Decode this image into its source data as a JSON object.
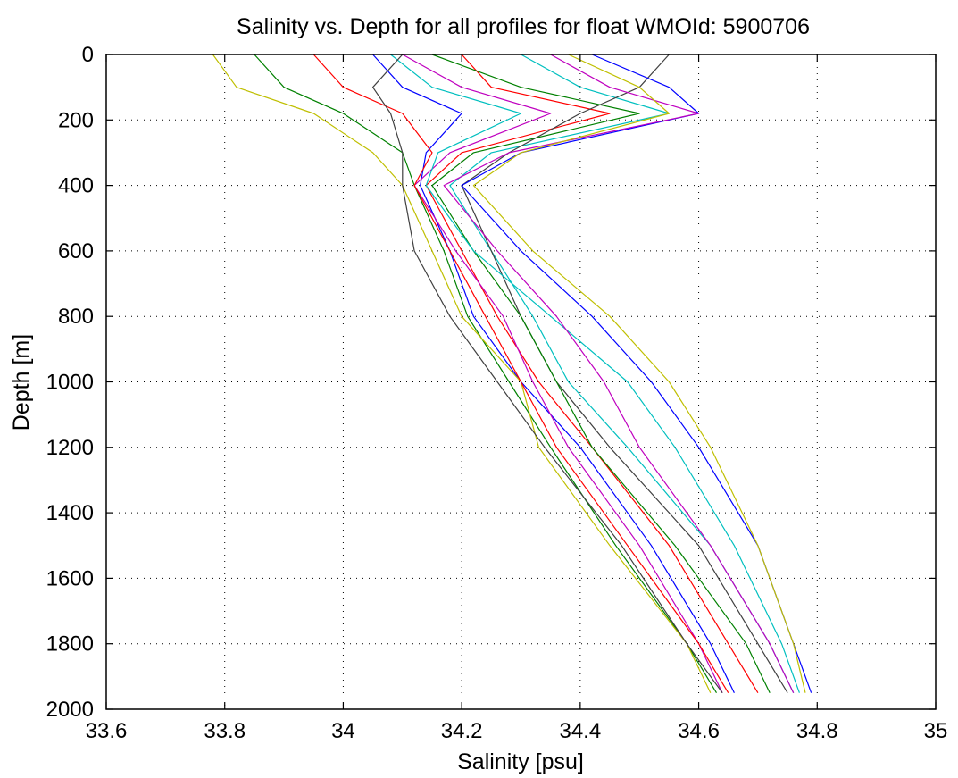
{
  "chart_data": {
    "type": "line",
    "title": "Salinity vs. Depth for all profiles for float WMOId: 5900706",
    "xlabel": "Salinity [psu]",
    "ylabel": "Depth [m]",
    "xlim": [
      33.6,
      35
    ],
    "ylim": [
      0,
      2000
    ],
    "y_reversed": true,
    "grid": true,
    "legend": "none",
    "x_ticks": [
      33.6,
      33.8,
      34,
      34.2,
      34.4,
      34.6,
      34.8,
      35
    ],
    "x_tick_labels": [
      "33.6",
      "33.8",
      "34",
      "34.2",
      "34.4",
      "34.6",
      "34.8",
      "35"
    ],
    "y_ticks": [
      0,
      200,
      400,
      600,
      800,
      1000,
      1200,
      1400,
      1600,
      1800,
      2000
    ],
    "y_tick_labels": [
      "0",
      "200",
      "400",
      "600",
      "800",
      "1000",
      "1200",
      "1400",
      "1600",
      "1800",
      "2000"
    ],
    "line_colors": [
      "#0000ff",
      "#008000",
      "#ff0000",
      "#00bfbf",
      "#bf00bf",
      "#bfbf00",
      "#404040"
    ],
    "series": [
      {
        "color": "#0000ff",
        "x": [
          34.05,
          34.1,
          34.2,
          34.14,
          34.13,
          34.18,
          34.22,
          34.3,
          34.4,
          34.52,
          34.62,
          34.66
        ],
        "y": [
          0,
          100,
          180,
          300,
          400,
          600,
          800,
          1000,
          1200,
          1500,
          1800,
          1950
        ]
      },
      {
        "color": "#008000",
        "x": [
          33.85,
          33.9,
          34.0,
          34.1,
          34.12,
          34.17,
          34.21,
          34.28,
          34.35,
          34.46,
          34.58,
          34.63
        ],
        "y": [
          0,
          100,
          180,
          300,
          400,
          600,
          800,
          1000,
          1200,
          1500,
          1800,
          1950
        ]
      },
      {
        "color": "#ff0000",
        "x": [
          34.2,
          34.25,
          34.45,
          34.2,
          34.14,
          34.2,
          34.26,
          34.33,
          34.42,
          34.55,
          34.65,
          34.7
        ],
        "y": [
          0,
          100,
          180,
          300,
          400,
          600,
          800,
          1000,
          1200,
          1500,
          1800,
          1950
        ]
      },
      {
        "color": "#00bfbf",
        "x": [
          34.3,
          34.4,
          34.55,
          34.25,
          34.18,
          34.25,
          34.32,
          34.38,
          34.48,
          34.62,
          34.72,
          34.76
        ],
        "y": [
          0,
          100,
          180,
          300,
          400,
          600,
          800,
          1000,
          1200,
          1500,
          1800,
          1950
        ]
      },
      {
        "color": "#bf00bf",
        "x": [
          34.1,
          34.2,
          34.35,
          34.18,
          34.12,
          34.19,
          34.27,
          34.32,
          34.38,
          34.5,
          34.6,
          34.64
        ],
        "y": [
          0,
          100,
          180,
          300,
          400,
          600,
          800,
          1000,
          1200,
          1500,
          1800,
          1950
        ]
      },
      {
        "color": "#bfbf00",
        "x": [
          33.78,
          33.82,
          33.95,
          34.05,
          34.1,
          34.15,
          34.2,
          34.3,
          34.33,
          34.45,
          34.58,
          34.62
        ],
        "y": [
          0,
          100,
          180,
          300,
          400,
          600,
          800,
          1000,
          1200,
          1500,
          1800,
          1950
        ]
      },
      {
        "color": "#404040",
        "x": [
          34.55,
          34.5,
          34.4,
          34.28,
          34.2,
          34.25,
          34.3,
          34.36,
          34.45,
          34.6,
          34.7,
          34.75
        ],
        "y": [
          0,
          100,
          180,
          300,
          400,
          600,
          800,
          1000,
          1200,
          1500,
          1800,
          1950
        ]
      },
      {
        "color": "#0000ff",
        "x": [
          34.42,
          34.55,
          34.6,
          34.3,
          34.2,
          34.3,
          34.42,
          34.52,
          34.6,
          34.7,
          34.76,
          34.79
        ],
        "y": [
          0,
          100,
          180,
          300,
          400,
          600,
          800,
          1000,
          1200,
          1500,
          1800,
          1950
        ]
      },
      {
        "color": "#008000",
        "x": [
          34.15,
          34.3,
          34.5,
          34.22,
          34.15,
          34.22,
          34.3,
          34.36,
          34.42,
          34.56,
          34.68,
          34.72
        ],
        "y": [
          0,
          100,
          180,
          300,
          400,
          600,
          800,
          1000,
          1200,
          1500,
          1800,
          1950
        ]
      },
      {
        "color": "#ff0000",
        "x": [
          33.95,
          34.0,
          34.1,
          34.15,
          34.12,
          34.18,
          34.24,
          34.3,
          34.36,
          34.48,
          34.6,
          34.65
        ],
        "y": [
          0,
          100,
          180,
          300,
          400,
          600,
          800,
          1000,
          1200,
          1500,
          1800,
          1950
        ]
      },
      {
        "color": "#00bfbf",
        "x": [
          34.08,
          34.15,
          34.3,
          34.16,
          34.14,
          34.22,
          34.35,
          34.48,
          34.56,
          34.66,
          34.74,
          34.77
        ],
        "y": [
          0,
          100,
          180,
          300,
          400,
          600,
          800,
          1000,
          1200,
          1500,
          1800,
          1950
        ]
      },
      {
        "color": "#bf00bf",
        "x": [
          34.35,
          34.45,
          34.6,
          34.28,
          34.17,
          34.26,
          34.36,
          34.44,
          34.5,
          34.62,
          34.72,
          34.76
        ],
        "y": [
          0,
          100,
          180,
          300,
          400,
          600,
          800,
          1000,
          1200,
          1500,
          1800,
          1950
        ]
      },
      {
        "color": "#bfbf00",
        "x": [
          34.38,
          34.5,
          34.55,
          34.3,
          34.22,
          34.32,
          34.45,
          34.55,
          34.62,
          34.7,
          34.76,
          34.78
        ],
        "y": [
          0,
          100,
          180,
          300,
          400,
          600,
          800,
          1000,
          1200,
          1500,
          1800,
          1950
        ]
      },
      {
        "color": "#404040",
        "x": [
          34.1,
          34.05,
          34.08,
          34.1,
          34.1,
          34.12,
          34.18,
          34.26,
          34.34,
          34.47,
          34.58,
          34.64
        ],
        "y": [
          0,
          100,
          180,
          300,
          400,
          600,
          800,
          1000,
          1200,
          1500,
          1800,
          1950
        ]
      }
    ]
  }
}
